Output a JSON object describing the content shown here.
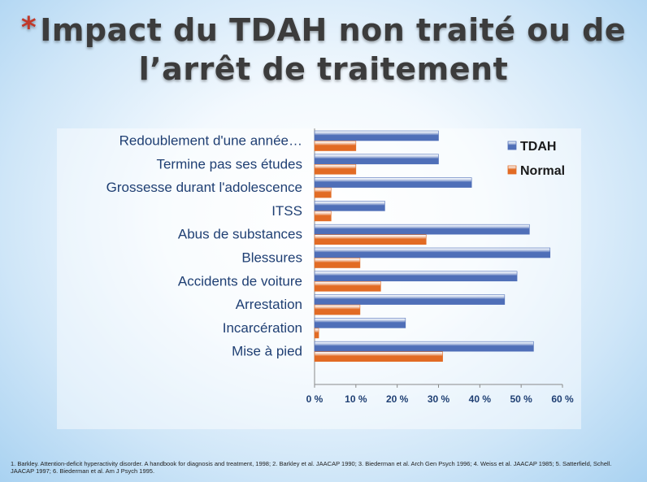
{
  "title": {
    "star": "*",
    "line1": "Impact du TDAH non traité ou de",
    "line2": "l’arrêt de traitement"
  },
  "chart_data": {
    "type": "bar",
    "orientation": "horizontal",
    "categories": [
      "Redoublement d'une année…",
      "Termine pas ses études",
      "Grossesse durant l'adolescence",
      "ITSS",
      "Abus de substances",
      "Blessures",
      "Accidents de voiture",
      "Arrestation",
      "Incarcération",
      "Mise à pied"
    ],
    "series": [
      {
        "name": "TDAH",
        "color": "#4f6fb8",
        "values": [
          30,
          30,
          38,
          17,
          52,
          57,
          49,
          46,
          22,
          53
        ]
      },
      {
        "name": "Normal",
        "color": "#e26b24",
        "values": [
          10,
          10,
          4,
          4,
          27,
          11,
          16,
          11,
          1,
          31
        ]
      }
    ],
    "xlim": [
      0,
      60
    ],
    "xticks": [
      "0 %",
      "10 %",
      "20 %",
      "30 %",
      "40 %",
      "50 %",
      "60 %"
    ],
    "legend": "top-right",
    "grid": false
  },
  "footnote": "1. Barkley. Attention-deficit hyperactivity disorder. A handbook for diagnosis and treatment, 1998; 2. Barkley et al. JAACAP 1990; 3. Biederman et al. Arch Gen Psych 1996; 4. Weiss et al. JAACAP 1985; 5. Satterfield, Schell. JAACAP 1997; 6. Biederman et al. Am J Psych 1995."
}
